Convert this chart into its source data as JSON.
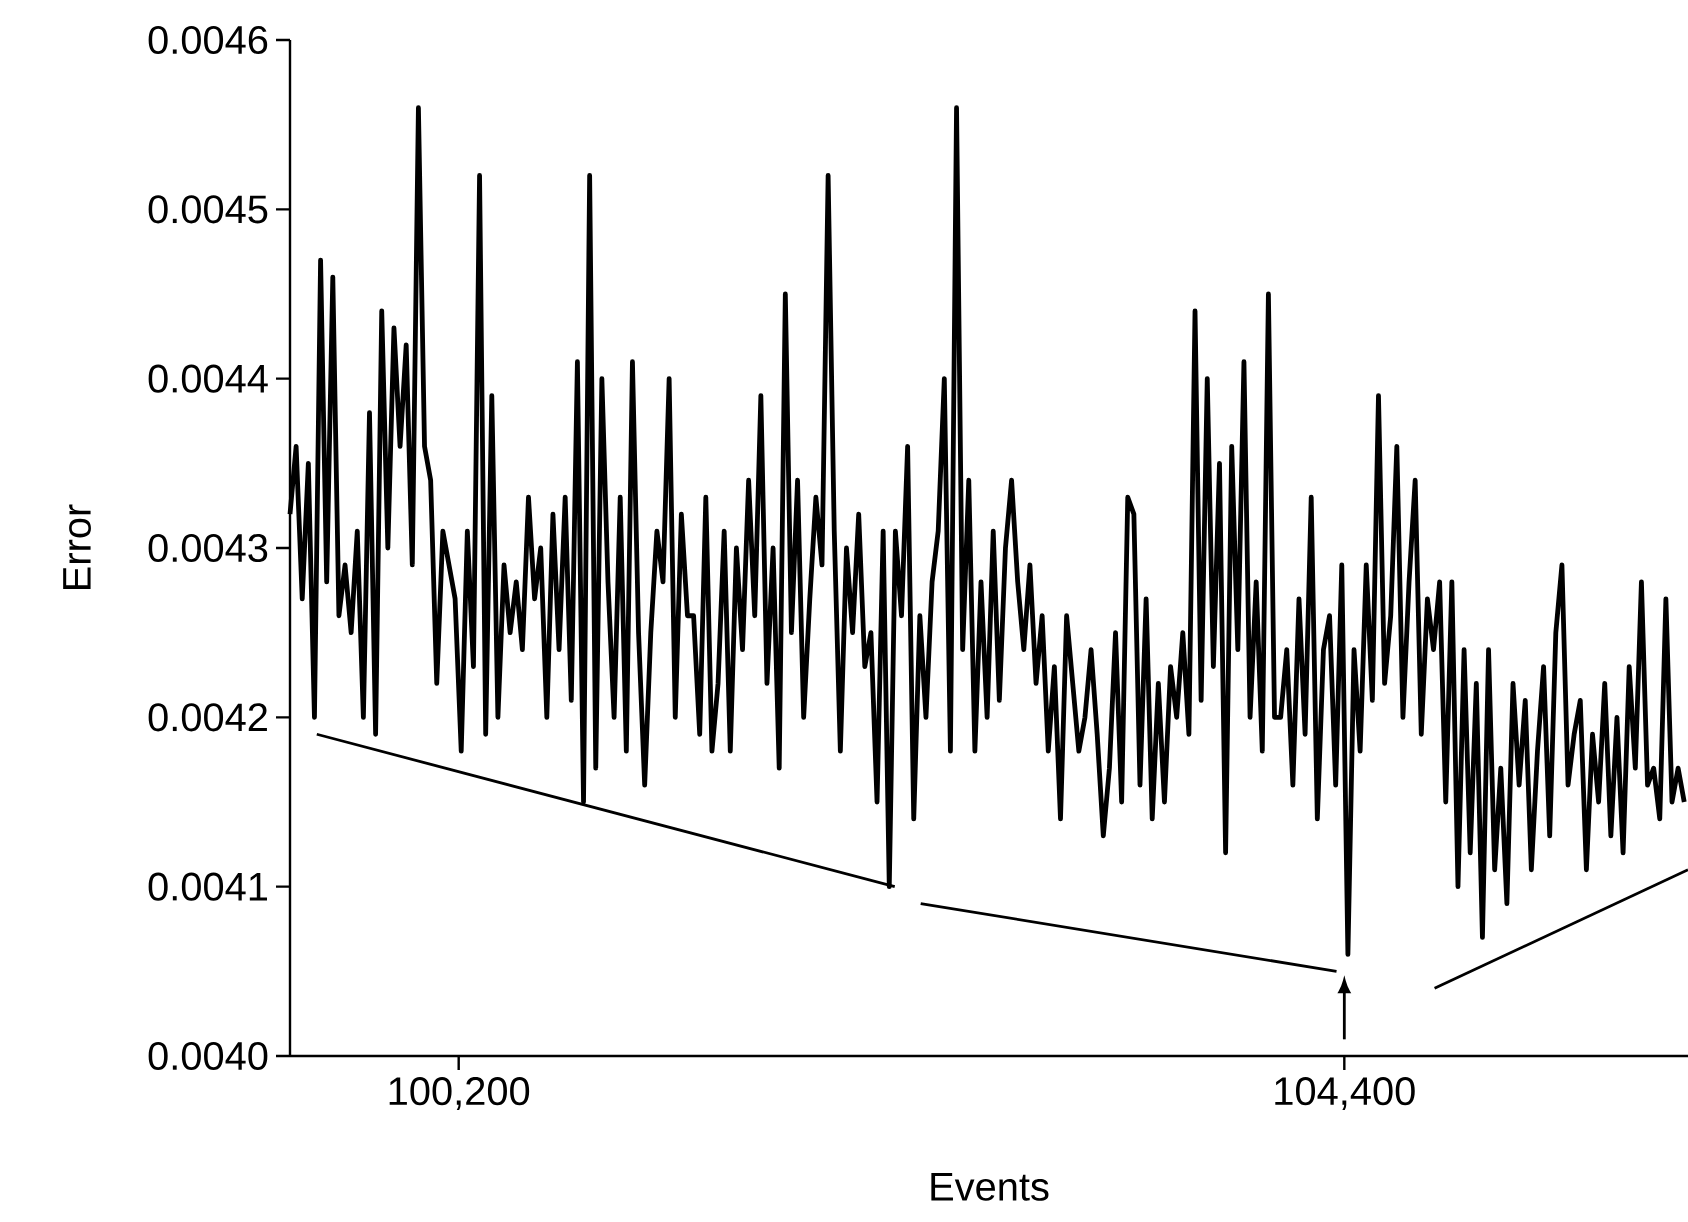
{
  "chart_data": {
    "type": "line",
    "xlabel": "Events",
    "ylabel": "Error",
    "xlim": [
      99400,
      106030
    ],
    "ylim": [
      0.004,
      0.0046
    ],
    "xticks": [
      {
        "value": 100200,
        "label": "100,200"
      },
      {
        "value": 104400,
        "label": "104,400"
      }
    ],
    "yticks": [
      {
        "value": 0.004,
        "label": "0.0040"
      },
      {
        "value": 0.0041,
        "label": "0.0041"
      },
      {
        "value": 0.0042,
        "label": "0.0042"
      },
      {
        "value": 0.0043,
        "label": "0.0043"
      },
      {
        "value": 0.0044,
        "label": "0.0044"
      },
      {
        "value": 0.0045,
        "label": "0.0045"
      },
      {
        "value": 0.0046,
        "label": "0.0046"
      }
    ],
    "grid": false,
    "marker": "none",
    "line_style": "solid",
    "series": [
      {
        "color": "#000000",
        "x": [
          99400,
          99429,
          99458,
          99487,
          99516,
          99545,
          99574,
          99603,
          99632,
          99661,
          99690,
          99719,
          99748,
          99777,
          99806,
          99835,
          99864,
          99893,
          99922,
          99951,
          99980,
          100009,
          100038,
          100067,
          100096,
          100125,
          100154,
          100183,
          100212,
          100241,
          100270,
          100299,
          100328,
          100357,
          100386,
          100415,
          100444,
          100473,
          100502,
          100531,
          100560,
          100589,
          100618,
          100647,
          100676,
          100705,
          100734,
          100763,
          100792,
          100821,
          100850,
          100879,
          100908,
          100937,
          100966,
          100995,
          101024,
          101053,
          101082,
          101111,
          101140,
          101169,
          101198,
          101227,
          101256,
          101285,
          101314,
          101343,
          101372,
          101401,
          101430,
          101459,
          101488,
          101517,
          101546,
          101575,
          101604,
          101633,
          101662,
          101691,
          101720,
          101749,
          101778,
          101807,
          101836,
          101865,
          101894,
          101923,
          101952,
          101981,
          102010,
          102039,
          102068,
          102097,
          102126,
          102155,
          102184,
          102213,
          102242,
          102271,
          102300,
          102329,
          102358,
          102387,
          102416,
          102445,
          102474,
          102503,
          102532,
          102561,
          102590,
          102619,
          102648,
          102677,
          102706,
          102735,
          102764,
          102793,
          102822,
          102851,
          102880,
          102909,
          102938,
          102967,
          102996,
          103025,
          103054,
          103083,
          103112,
          103141,
          103170,
          103199,
          103228,
          103257,
          103286,
          103315,
          103344,
          103373,
          103402,
          103431,
          103460,
          103489,
          103518,
          103547,
          103576,
          103605,
          103634,
          103663,
          103692,
          103721,
          103750,
          103779,
          103808,
          103837,
          103866,
          103895,
          103924,
          103953,
          103982,
          104011,
          104040,
          104069,
          104098,
          104127,
          104156,
          104185,
          104214,
          104243,
          104272,
          104301,
          104330,
          104359,
          104388,
          104417,
          104446,
          104475,
          104504,
          104533,
          104562,
          104591,
          104620,
          104649,
          104678,
          104707,
          104736,
          104765,
          104794,
          104823,
          104852,
          104881,
          104910,
          104939,
          104968,
          104997,
          105026,
          105055,
          105084,
          105113,
          105142,
          105171,
          105200,
          105229,
          105258,
          105287,
          105316,
          105345,
          105374,
          105403,
          105432,
          105461,
          105490,
          105519,
          105548,
          105577,
          105606,
          105635,
          105664,
          105693,
          105722,
          105751,
          105780,
          105809,
          105838,
          105867,
          105896,
          105925,
          105954,
          105983,
          106012
        ],
        "values": [
          0.00432,
          0.00436,
          0.00427,
          0.00435,
          0.0042,
          0.00447,
          0.00428,
          0.00446,
          0.00426,
          0.00429,
          0.00425,
          0.00431,
          0.0042,
          0.00438,
          0.00419,
          0.00444,
          0.0043,
          0.00443,
          0.00436,
          0.00442,
          0.00429,
          0.00456,
          0.00436,
          0.00434,
          0.00422,
          0.00431,
          0.00429,
          0.00427,
          0.00418,
          0.00431,
          0.00423,
          0.00452,
          0.00419,
          0.00439,
          0.0042,
          0.00429,
          0.00425,
          0.00428,
          0.00424,
          0.00433,
          0.00427,
          0.0043,
          0.0042,
          0.00432,
          0.00424,
          0.00433,
          0.00421,
          0.00441,
          0.00415,
          0.00452,
          0.00417,
          0.0044,
          0.00428,
          0.0042,
          0.00433,
          0.00418,
          0.00441,
          0.00425,
          0.00416,
          0.00425,
          0.00431,
          0.00428,
          0.0044,
          0.0042,
          0.00432,
          0.00426,
          0.00426,
          0.00419,
          0.00433,
          0.00418,
          0.00422,
          0.00431,
          0.00418,
          0.0043,
          0.00424,
          0.00434,
          0.00426,
          0.00439,
          0.00422,
          0.0043,
          0.00417,
          0.00445,
          0.00425,
          0.00434,
          0.0042,
          0.00427,
          0.00433,
          0.00429,
          0.00452,
          0.00431,
          0.00418,
          0.0043,
          0.00425,
          0.00432,
          0.00423,
          0.00425,
          0.00415,
          0.00431,
          0.0041,
          0.00431,
          0.00426,
          0.00436,
          0.00414,
          0.00426,
          0.0042,
          0.00428,
          0.00431,
          0.0044,
          0.00418,
          0.00456,
          0.00424,
          0.00434,
          0.00418,
          0.00428,
          0.0042,
          0.00431,
          0.00421,
          0.0043,
          0.00434,
          0.00428,
          0.00424,
          0.00429,
          0.00422,
          0.00426,
          0.00418,
          0.00423,
          0.00414,
          0.00426,
          0.00422,
          0.00418,
          0.0042,
          0.00424,
          0.00419,
          0.00413,
          0.00417,
          0.00425,
          0.00415,
          0.00433,
          0.00432,
          0.00416,
          0.00427,
          0.00414,
          0.00422,
          0.00415,
          0.00423,
          0.0042,
          0.00425,
          0.00419,
          0.00444,
          0.00421,
          0.0044,
          0.00423,
          0.00435,
          0.00412,
          0.00436,
          0.00424,
          0.00441,
          0.0042,
          0.00428,
          0.00418,
          0.00445,
          0.0042,
          0.0042,
          0.00424,
          0.00416,
          0.00427,
          0.00419,
          0.00433,
          0.00414,
          0.00424,
          0.00426,
          0.00416,
          0.00429,
          0.00406,
          0.00424,
          0.00418,
          0.00429,
          0.00421,
          0.00439,
          0.00422,
          0.00426,
          0.00436,
          0.0042,
          0.00428,
          0.00434,
          0.00419,
          0.00427,
          0.00424,
          0.00428,
          0.00415,
          0.00428,
          0.0041,
          0.00424,
          0.00412,
          0.00422,
          0.00407,
          0.00424,
          0.00411,
          0.00417,
          0.00409,
          0.00422,
          0.00416,
          0.00421,
          0.00411,
          0.00418,
          0.00423,
          0.00413,
          0.00425,
          0.00429,
          0.00416,
          0.00419,
          0.00421,
          0.00411,
          0.00419,
          0.00415,
          0.00422,
          0.00413,
          0.0042,
          0.00412,
          0.00423,
          0.00417,
          0.00428,
          0.00416,
          0.00417,
          0.00414,
          0.00427,
          0.00415,
          0.00417,
          0.00415
        ]
      },
      {
        "type": "line",
        "color": "#000000",
        "x": [
          99527,
          102268
        ],
        "values": [
          0.00419,
          0.0041
        ]
      },
      {
        "type": "line",
        "color": "#000000",
        "x": [
          102391,
          104363
        ],
        "values": [
          0.00409,
          0.00405
        ]
      },
      {
        "type": "line",
        "color": "#000000",
        "x": [
          104828,
          106030
        ],
        "values": [
          0.00404,
          0.00411
        ]
      }
    ]
  }
}
